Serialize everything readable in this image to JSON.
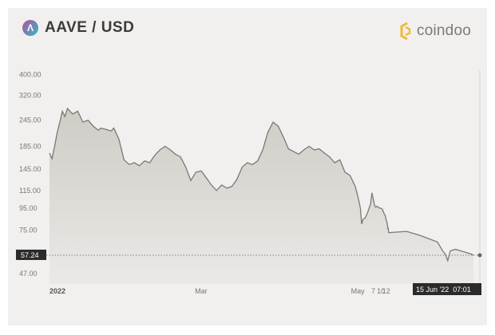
{
  "header": {
    "title": "AAVE / USD",
    "brand": "coindoo",
    "icon_name": "aave-logo-icon",
    "brand_icon_name": "coindoo-logo-icon"
  },
  "colors": {
    "background": "#f1f0ee",
    "line": "#7b7975",
    "area_top": "#cfccc6",
    "area_bottom": "#ebe9e6",
    "tag_bg": "#2b2b2b",
    "brand_gold": "#f0b93a"
  },
  "chart_data": {
    "type": "area",
    "title": "AAVE / USD",
    "y_scale": "log",
    "ylim": [
      42,
      420
    ],
    "y_ticks": [
      "400.00",
      "320.00",
      "245.00",
      "185.00",
      "145.00",
      "115.00",
      "95.00",
      "75.00",
      "47.00"
    ],
    "y_tick_values": [
      400,
      320,
      245,
      185,
      145,
      115,
      95,
      75,
      47
    ],
    "x_ticks": [
      {
        "label": "2022",
        "date": "2022-01-01"
      },
      {
        "label": "Mar",
        "date": "2022-03-01"
      },
      {
        "label": "May",
        "date": "2022-05-01"
      },
      {
        "label": "7",
        "date": "2022-05-07"
      },
      {
        "label": "10",
        "date": "2022-05-10"
      },
      {
        "label": "12",
        "date": "2022-05-12"
      }
    ],
    "xlim": [
      "2022-01-01",
      "2022-06-15"
    ],
    "current_price": "57.24",
    "current_value": 57.24,
    "current_time": "15 Jun '22  07:01",
    "series": [
      {
        "points": [
          [
            "2022-01-01",
            172
          ],
          [
            "2022-01-02",
            162
          ],
          [
            "2022-01-03",
            185
          ],
          [
            "2022-01-04",
            215
          ],
          [
            "2022-01-05",
            240
          ],
          [
            "2022-01-06",
            270
          ],
          [
            "2022-01-07",
            255
          ],
          [
            "2022-01-08",
            278
          ],
          [
            "2022-01-10",
            262
          ],
          [
            "2022-01-12",
            270
          ],
          [
            "2022-01-14",
            240
          ],
          [
            "2022-01-16",
            245
          ],
          [
            "2022-01-18",
            230
          ],
          [
            "2022-01-20",
            220
          ],
          [
            "2022-01-21",
            225
          ],
          [
            "2022-01-23",
            222
          ],
          [
            "2022-01-25",
            218
          ],
          [
            "2022-01-26",
            225
          ],
          [
            "2022-01-28",
            200
          ],
          [
            "2022-01-30",
            160
          ],
          [
            "2022-02-01",
            152
          ],
          [
            "2022-02-03",
            155
          ],
          [
            "2022-02-05",
            150
          ],
          [
            "2022-02-07",
            158
          ],
          [
            "2022-02-09",
            155
          ],
          [
            "2022-02-11",
            168
          ],
          [
            "2022-02-13",
            178
          ],
          [
            "2022-02-15",
            185
          ],
          [
            "2022-02-17",
            178
          ],
          [
            "2022-02-19",
            170
          ],
          [
            "2022-02-21",
            165
          ],
          [
            "2022-02-23",
            148
          ],
          [
            "2022-02-25",
            128
          ],
          [
            "2022-02-27",
            140
          ],
          [
            "2022-03-01",
            142
          ],
          [
            "2022-03-03",
            132
          ],
          [
            "2022-03-05",
            122
          ],
          [
            "2022-03-07",
            115
          ],
          [
            "2022-03-09",
            122
          ],
          [
            "2022-03-11",
            118
          ],
          [
            "2022-03-13",
            120
          ],
          [
            "2022-03-15",
            130
          ],
          [
            "2022-03-17",
            148
          ],
          [
            "2022-03-19",
            155
          ],
          [
            "2022-03-21",
            152
          ],
          [
            "2022-03-23",
            158
          ],
          [
            "2022-03-25",
            178
          ],
          [
            "2022-03-27",
            215
          ],
          [
            "2022-03-29",
            240
          ],
          [
            "2022-03-31",
            230
          ],
          [
            "2022-04-02",
            205
          ],
          [
            "2022-04-04",
            180
          ],
          [
            "2022-04-06",
            175
          ],
          [
            "2022-04-08",
            170
          ],
          [
            "2022-04-10",
            178
          ],
          [
            "2022-04-12",
            185
          ],
          [
            "2022-04-14",
            178
          ],
          [
            "2022-04-16",
            180
          ],
          [
            "2022-04-18",
            172
          ],
          [
            "2022-04-20",
            165
          ],
          [
            "2022-04-22",
            155
          ],
          [
            "2022-04-24",
            160
          ],
          [
            "2022-04-26",
            140
          ],
          [
            "2022-04-28",
            135
          ],
          [
            "2022-04-30",
            120
          ],
          [
            "2022-05-01",
            108
          ],
          [
            "2022-05-02",
            95
          ],
          [
            "2022-05-02T12:00",
            80
          ],
          [
            "2022-05-03",
            84
          ],
          [
            "2022-05-04",
            86
          ],
          [
            "2022-05-05",
            92
          ],
          [
            "2022-05-06",
            100
          ],
          [
            "2022-05-06T12:00",
            112
          ],
          [
            "2022-05-07",
            105
          ],
          [
            "2022-05-07T12:00",
            98
          ],
          [
            "2022-05-08",
            96
          ],
          [
            "2022-05-08T12:00",
            97
          ],
          [
            "2022-05-09",
            96
          ],
          [
            "2022-05-09T12:00",
            95
          ],
          [
            "2022-05-10",
            95
          ],
          [
            "2022-05-10T12:00",
            94
          ],
          [
            "2022-05-11",
            91
          ],
          [
            "2022-05-11T08:00",
            89
          ],
          [
            "2022-05-11T16:00",
            88
          ],
          [
            "2022-05-12",
            84
          ],
          [
            "2022-05-12T12:00",
            80
          ],
          [
            "2022-05-12T16:00",
            76
          ],
          [
            "2022-05-12T20:00",
            77
          ],
          [
            "2022-05-13",
            73
          ],
          [
            "2022-05-20",
            74
          ],
          [
            "2022-05-25",
            71
          ],
          [
            "2022-06-01",
            66
          ],
          [
            "2022-06-03",
            60
          ],
          [
            "2022-06-04",
            58
          ],
          [
            "2022-06-05",
            54
          ],
          [
            "2022-06-06",
            60
          ],
          [
            "2022-06-08",
            61
          ],
          [
            "2022-06-10",
            60
          ],
          [
            "2022-06-12",
            59
          ],
          [
            "2022-06-14",
            58
          ],
          [
            "2022-06-15",
            57.24
          ]
        ]
      }
    ]
  }
}
